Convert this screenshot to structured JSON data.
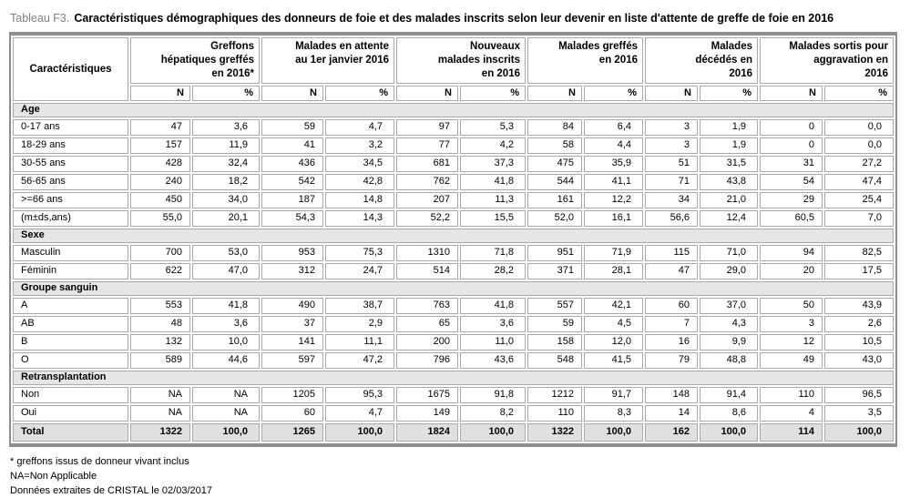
{
  "title": {
    "prefix": "Tableau F3.",
    "text": "Caractéristiques démographiques des donneurs de foie et des malades inscrits selon leur devenir en liste d'attente de greffe de foie en 2016"
  },
  "table": {
    "row_header": "Caractéristiques",
    "groups": [
      "Greffons\nhépatiques greffés\nen 2016*",
      "Malades en attente\nau 1er janvier 2016",
      "Nouveaux\nmalades inscrits\nen 2016",
      "Malades greffés\nen 2016",
      "Malades\ndécédés en\n2016",
      "Malades sortis pour\naggravation en\n2016"
    ],
    "subheaders": [
      "N",
      "%"
    ],
    "sections": [
      {
        "label": "Age",
        "rows": [
          {
            "label": "0-17 ans",
            "values": [
              "47",
              "3,6",
              "59",
              "4,7",
              "97",
              "5,3",
              "84",
              "6,4",
              "3",
              "1,9",
              "0",
              "0,0"
            ]
          },
          {
            "label": "18-29 ans",
            "values": [
              "157",
              "11,9",
              "41",
              "3,2",
              "77",
              "4,2",
              "58",
              "4,4",
              "3",
              "1,9",
              "0",
              "0,0"
            ]
          },
          {
            "label": "30-55 ans",
            "values": [
              "428",
              "32,4",
              "436",
              "34,5",
              "681",
              "37,3",
              "475",
              "35,9",
              "51",
              "31,5",
              "31",
              "27,2"
            ]
          },
          {
            "label": "56-65 ans",
            "values": [
              "240",
              "18,2",
              "542",
              "42,8",
              "762",
              "41,8",
              "544",
              "41,1",
              "71",
              "43,8",
              "54",
              "47,4"
            ]
          },
          {
            "label": ">=66 ans",
            "values": [
              "450",
              "34,0",
              "187",
              "14,8",
              "207",
              "11,3",
              "161",
              "12,2",
              "34",
              "21,0",
              "29",
              "25,4"
            ]
          },
          {
            "label": "(m±ds,ans)",
            "values": [
              "55,0",
              "20,1",
              "54,3",
              "14,3",
              "52,2",
              "15,5",
              "52,0",
              "16,1",
              "56,6",
              "12,4",
              "60,5",
              "7,0"
            ]
          }
        ]
      },
      {
        "label": "Sexe",
        "rows": [
          {
            "label": "Masculin",
            "values": [
              "700",
              "53,0",
              "953",
              "75,3",
              "1310",
              "71,8",
              "951",
              "71,9",
              "115",
              "71,0",
              "94",
              "82,5"
            ]
          },
          {
            "label": "Féminin",
            "values": [
              "622",
              "47,0",
              "312",
              "24,7",
              "514",
              "28,2",
              "371",
              "28,1",
              "47",
              "29,0",
              "20",
              "17,5"
            ]
          }
        ]
      },
      {
        "label": "Groupe sanguin",
        "rows": [
          {
            "label": "A",
            "values": [
              "553",
              "41,8",
              "490",
              "38,7",
              "763",
              "41,8",
              "557",
              "42,1",
              "60",
              "37,0",
              "50",
              "43,9"
            ]
          },
          {
            "label": "AB",
            "values": [
              "48",
              "3,6",
              "37",
              "2,9",
              "65",
              "3,6",
              "59",
              "4,5",
              "7",
              "4,3",
              "3",
              "2,6"
            ]
          },
          {
            "label": "B",
            "values": [
              "132",
              "10,0",
              "141",
              "11,1",
              "200",
              "11,0",
              "158",
              "12,0",
              "16",
              "9,9",
              "12",
              "10,5"
            ]
          },
          {
            "label": "O",
            "values": [
              "589",
              "44,6",
              "597",
              "47,2",
              "796",
              "43,6",
              "548",
              "41,5",
              "79",
              "48,8",
              "49",
              "43,0"
            ]
          }
        ]
      },
      {
        "label": "Retransplantation",
        "rows": [
          {
            "label": "Non",
            "values": [
              "NA",
              "NA",
              "1205",
              "95,3",
              "1675",
              "91,8",
              "1212",
              "91,7",
              "148",
              "91,4",
              "110",
              "96,5"
            ]
          },
          {
            "label": "Oui",
            "values": [
              "NA",
              "NA",
              "60",
              "4,7",
              "149",
              "8,2",
              "110",
              "8,3",
              "14",
              "8,6",
              "4",
              "3,5"
            ]
          }
        ]
      }
    ],
    "total": {
      "label": "Total",
      "values": [
        "1322",
        "100,0",
        "1265",
        "100,0",
        "1824",
        "100,0",
        "1322",
        "100,0",
        "162",
        "100,0",
        "114",
        "100,0"
      ]
    }
  },
  "footnotes": [
    "* greffons issus de donneur vivant inclus",
    "NA=Non Applicable",
    "Données extraites de CRISTAL le 02/03/2017"
  ],
  "colors": {
    "section_row_bg": "#e6e6e6",
    "total_row_bg": "#e0e0e0",
    "cell_border": "#a9a9a9",
    "outer_border": "#8e8e8e",
    "title_prefix": "#7f7f7f"
  }
}
